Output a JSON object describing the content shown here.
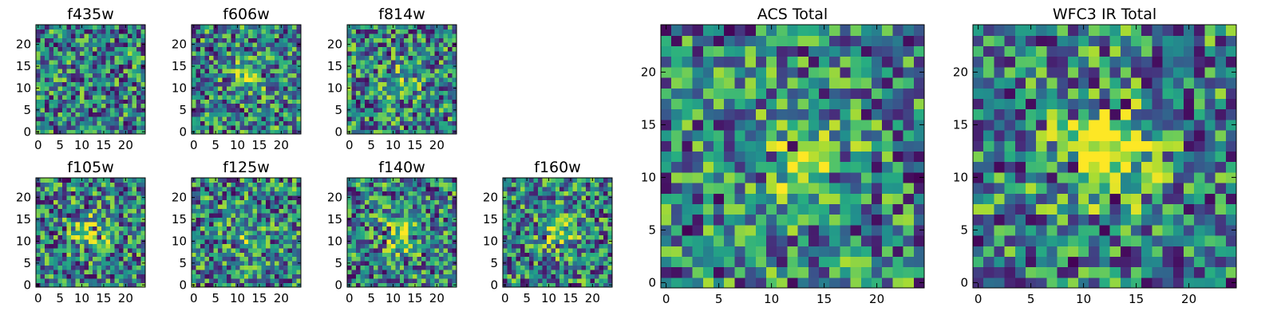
{
  "chart_data": [
    {
      "type": "heatmap",
      "title": "f435w",
      "xticks": [
        "0",
        "5",
        "10",
        "15",
        "20"
      ],
      "yticks": [
        "0",
        "5",
        "10",
        "15",
        "20"
      ],
      "xlim": [
        -0.5,
        24.5
      ],
      "ylim": [
        -0.5,
        24.5
      ],
      "grid_size": 25,
      "colormap": "viridis",
      "source_label": "none",
      "seed": 11
    },
    {
      "type": "heatmap",
      "title": "f606w",
      "xticks": [
        "0",
        "5",
        "10",
        "15",
        "20"
      ],
      "yticks": [
        "0",
        "5",
        "10",
        "15",
        "20"
      ],
      "xlim": [
        -0.5,
        24.5
      ],
      "ylim": [
        -0.5,
        24.5
      ],
      "grid_size": 25,
      "colormap": "viridis",
      "source_label": "faint",
      "seed": 23
    },
    {
      "type": "heatmap",
      "title": "f814w",
      "xticks": [
        "0",
        "5",
        "10",
        "15",
        "20"
      ],
      "yticks": [
        "0",
        "5",
        "10",
        "15",
        "20"
      ],
      "xlim": [
        -0.5,
        24.5
      ],
      "ylim": [
        -0.5,
        24.5
      ],
      "grid_size": 25,
      "colormap": "viridis",
      "source_label": "faint",
      "seed": 37
    },
    {
      "type": "heatmap",
      "title": "f105w",
      "xticks": [
        "0",
        "5",
        "10",
        "15",
        "20"
      ],
      "yticks": [
        "0",
        "5",
        "10",
        "15",
        "20"
      ],
      "xlim": [
        -0.5,
        24.5
      ],
      "ylim": [
        -0.5,
        24.5
      ],
      "grid_size": 25,
      "colormap": "viridis",
      "source_label": "moderate",
      "seed": 41
    },
    {
      "type": "heatmap",
      "title": "f125w",
      "xticks": [
        "0",
        "5",
        "10",
        "15",
        "20"
      ],
      "yticks": [
        "0",
        "5",
        "10",
        "15",
        "20"
      ],
      "xlim": [
        -0.5,
        24.5
      ],
      "ylim": [
        -0.5,
        24.5
      ],
      "grid_size": 25,
      "colormap": "viridis",
      "source_label": "faint",
      "seed": 53
    },
    {
      "type": "heatmap",
      "title": "f140w",
      "xticks": [
        "0",
        "5",
        "10",
        "15",
        "20"
      ],
      "yticks": [
        "0",
        "5",
        "10",
        "15",
        "20"
      ],
      "xlim": [
        -0.5,
        24.5
      ],
      "ylim": [
        -0.5,
        24.5
      ],
      "grid_size": 25,
      "colormap": "viridis",
      "source_label": "moderate",
      "seed": 67
    },
    {
      "type": "heatmap",
      "title": "f160w",
      "xticks": [
        "0",
        "5",
        "10",
        "15",
        "20"
      ],
      "yticks": [
        "0",
        "5",
        "10",
        "15",
        "20"
      ],
      "xlim": [
        -0.5,
        24.5
      ],
      "ylim": [
        -0.5,
        24.5
      ],
      "grid_size": 25,
      "colormap": "viridis",
      "source_label": "moderate",
      "seed": 71
    },
    {
      "type": "heatmap",
      "title": "ACS Total",
      "xticks": [
        "0",
        "5",
        "10",
        "15",
        "20"
      ],
      "yticks": [
        "0",
        "5",
        "10",
        "15",
        "20"
      ],
      "xlim": [
        -0.5,
        24.5
      ],
      "ylim": [
        -0.5,
        24.5
      ],
      "grid_size": 25,
      "colormap": "viridis",
      "source_label": "moderate",
      "seed": 83
    },
    {
      "type": "heatmap",
      "title": "WFC3 IR Total",
      "xticks": [
        "0",
        "5",
        "10",
        "15",
        "20"
      ],
      "yticks": [
        "0",
        "5",
        "10",
        "15",
        "20"
      ],
      "xlim": [
        -0.5,
        24.5
      ],
      "ylim": [
        -0.5,
        24.5
      ],
      "grid_size": 25,
      "colormap": "viridis",
      "source_label": "bright",
      "seed": 97
    }
  ],
  "colors": {
    "viridis": [
      "#440154",
      "#472c7a",
      "#3b518b",
      "#2c718e",
      "#21908d",
      "#27ad81",
      "#5cc863",
      "#aadc32",
      "#fde725"
    ]
  }
}
